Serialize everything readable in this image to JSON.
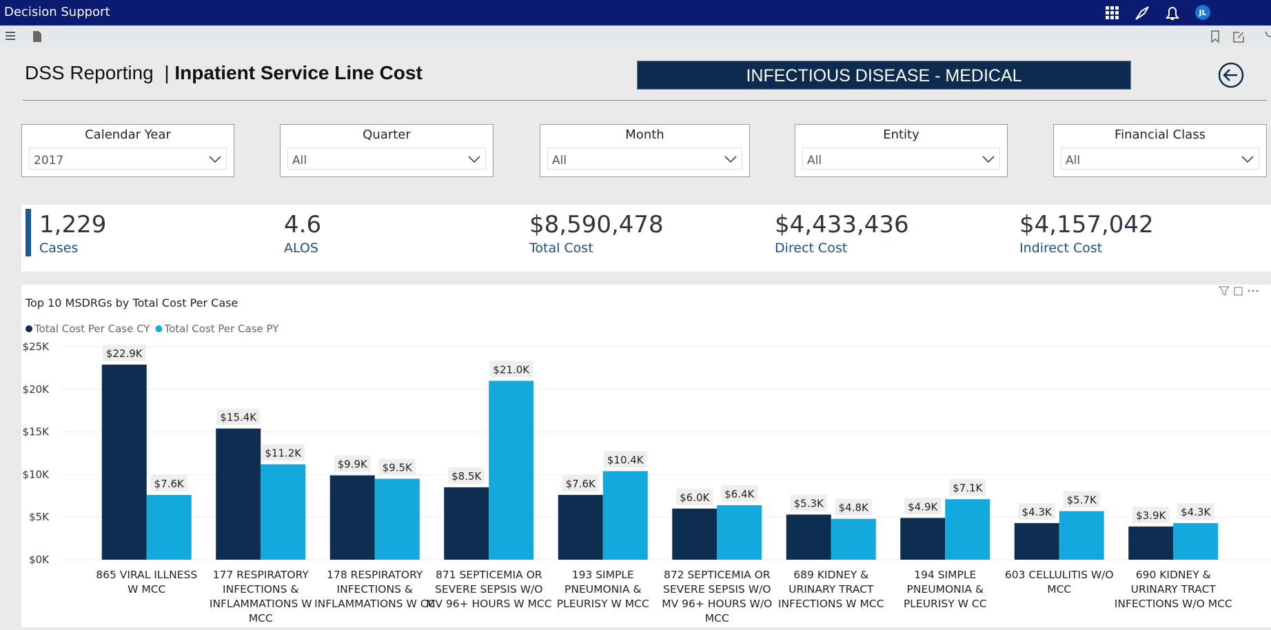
{
  "app": {
    "title": "Decision Support",
    "user_initials": "JL"
  },
  "header": {
    "report": "DSS Reporting",
    "separator": "|",
    "title": "Inpatient Service Line Cost",
    "banner": "INFECTIOUS DISEASE - MEDICAL"
  },
  "filters": [
    {
      "label": "Calendar Year",
      "value": "2017"
    },
    {
      "label": "Quarter",
      "value": "All"
    },
    {
      "label": "Month",
      "value": "All"
    },
    {
      "label": "Entity",
      "value": "All"
    },
    {
      "label": "Financial Class",
      "value": "All"
    }
  ],
  "kpis": [
    {
      "value": "1,229",
      "label": "Cases"
    },
    {
      "value": "4.6",
      "label": "ALOS"
    },
    {
      "value": "$8,590,478",
      "label": "Total Cost"
    },
    {
      "value": "$4,433,436",
      "label": "Direct Cost"
    },
    {
      "value": "$4,157,042",
      "label": "Indirect Cost"
    }
  ],
  "chart_data": {
    "type": "bar",
    "title": "Top 10 MSDRGs by Total Cost Per Case",
    "categories": [
      "865 VIRAL ILLNESS W MCC",
      "177 RESPIRATORY INFECTIONS & INFLAMMATIONS W MCC",
      "178 RESPIRATORY INFECTIONS & INFLAMMATIONS W CC",
      "871 SEPTICEMIA OR SEVERE SEPSIS W/O MV 96+ HOURS W MCC",
      "193 SIMPLE PNEUMONIA & PLEURISY W MCC",
      "872 SEPTICEMIA OR SEVERE SEPSIS W/O MV 96+ HOURS W/O MCC",
      "689 KIDNEY & URINARY TRACT INFECTIONS W MCC",
      "194 SIMPLE PNEUMONIA & PLEURISY W CC",
      "603 CELLULITIS W/O MCC",
      "690 KIDNEY & URINARY TRACT INFECTIONS W/O MCC"
    ],
    "series": [
      {
        "name": "Total Cost Per Case CY",
        "color": "#0d2e50",
        "values": [
          22900,
          15400,
          9900,
          8500,
          7600,
          6000,
          5300,
          4900,
          4300,
          3900
        ],
        "value_labels": [
          "$22.9K",
          "$15.4K",
          "$9.9K",
          "$8.5K",
          "$7.6K",
          "$6.0K",
          "$5.3K",
          "$4.9K",
          "$4.3K",
          "$3.9K"
        ]
      },
      {
        "name": "Total Cost Per Case PY",
        "color": "#14a9dc",
        "values": [
          7600,
          11200,
          9500,
          21000,
          10400,
          6400,
          4800,
          7100,
          5700,
          4300
        ],
        "value_labels": [
          "$7.6K",
          "$11.2K",
          "$9.5K",
          "$21.0K",
          "$10.4K",
          "$6.4K",
          "$4.8K",
          "$7.1K",
          "$5.7K",
          "$4.3K"
        ]
      }
    ],
    "ylim": [
      0,
      25000
    ],
    "yticks": [
      {
        "value": 0,
        "label": "$0K"
      },
      {
        "value": 5000,
        "label": "$5K"
      },
      {
        "value": 10000,
        "label": "$10K"
      },
      {
        "value": 15000,
        "label": "$15K"
      },
      {
        "value": 20000,
        "label": "$20K"
      },
      {
        "value": 25000,
        "label": "$25K"
      }
    ],
    "grid": true,
    "legend": "top-left"
  }
}
